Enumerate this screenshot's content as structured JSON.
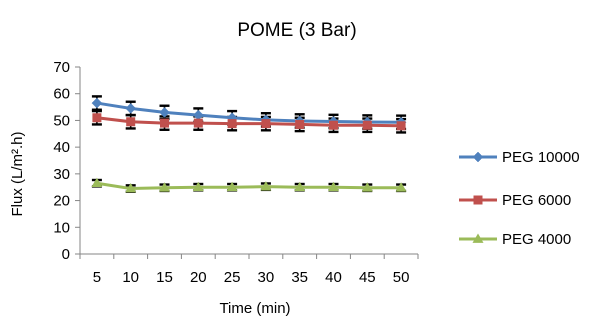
{
  "chart_data": {
    "type": "line",
    "title": "POME (3 Bar)",
    "xlabel": "Time (min)",
    "ylabel": "Flux (L/m².h)",
    "x": [
      5,
      10,
      15,
      20,
      25,
      30,
      35,
      40,
      45,
      50
    ],
    "y_ticks": [
      0,
      10,
      20,
      30,
      40,
      50,
      60,
      70
    ],
    "ylim": [
      0,
      70
    ],
    "grid": false,
    "legend_position": "right",
    "series": [
      {
        "name": "PEG 10000",
        "color": "#4F81BD",
        "marker": "diamond",
        "values": [
          56.5,
          54.5,
          53.0,
          52.0,
          51.0,
          50.2,
          49.8,
          49.6,
          49.4,
          49.3
        ],
        "error": [
          2.5,
          2.5,
          2.5,
          2.5,
          2.5,
          2.5,
          2.5,
          2.5,
          2.5,
          2.5
        ]
      },
      {
        "name": "PEG 6000",
        "color": "#C0504D",
        "marker": "square",
        "values": [
          51.0,
          49.5,
          49.0,
          49.0,
          48.8,
          48.8,
          48.5,
          48.2,
          48.2,
          48.0
        ],
        "error": [
          2.5,
          2.5,
          2.5,
          2.5,
          2.5,
          2.5,
          2.5,
          2.5,
          2.5,
          2.5
        ]
      },
      {
        "name": "PEG 4000",
        "color": "#9BBB59",
        "marker": "triangle",
        "values": [
          26.5,
          24.5,
          24.8,
          25.0,
          25.0,
          25.2,
          25.0,
          25.0,
          24.8,
          24.8
        ],
        "error": [
          1.2,
          1.2,
          1.2,
          1.2,
          1.2,
          1.2,
          1.2,
          1.2,
          1.2,
          1.2
        ]
      }
    ]
  }
}
